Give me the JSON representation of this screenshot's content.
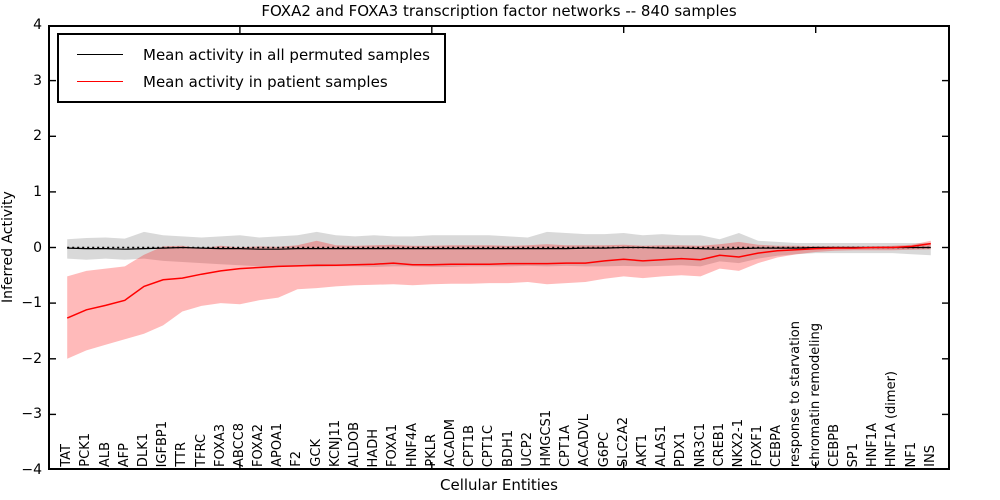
{
  "chart_data": {
    "type": "line",
    "title": "FOXA2 and FOXA3 transcription factor networks -- 840 samples",
    "xlabel": "Cellular Entities",
    "ylabel": "Inferred Activity",
    "ylim": [
      -4,
      4
    ],
    "yticks": [
      4,
      3,
      2,
      1,
      0,
      -1,
      -2,
      -3,
      -4
    ],
    "xlim": [
      0,
      47
    ],
    "x_axis_tick_positions": [
      10,
      20,
      30,
      40
    ],
    "grid": false,
    "legend_position": "upper left",
    "zero_reference_line": {
      "y": 0,
      "style": "dotted",
      "color": "#000000"
    },
    "categories": [
      "TAT",
      "PCK1",
      "ALB",
      "AFP",
      "DLK1",
      "IGFBP1",
      "TTR",
      "TFRC",
      "FOXA3",
      "ABCC8",
      "FOXA2",
      "APOA1",
      "F2",
      "GCK",
      "KCNJ11",
      "ALDOB",
      "HADH",
      "FOXA1",
      "HNF4A",
      "PKLR",
      "ACADM",
      "CPT1B",
      "CPT1C",
      "BDH1",
      "UCP2",
      "HMGCS1",
      "CPT1A",
      "ACADVL",
      "G6PC",
      "SLC2A2",
      "AKT1",
      "ALAS1",
      "PDX1",
      "NR3C1",
      "CREB1",
      "NKX2-1",
      "FOXF1",
      "CEBPA",
      "response to starvation",
      "chromatin remodeling",
      "CEBPB",
      "SP1",
      "HNF1A",
      "HNF1A (dimer)",
      "NF1",
      "INS"
    ],
    "series": [
      {
        "name": "Mean activity in all permuted samples",
        "color": "#000000",
        "line_width": 1.2,
        "band_color": "#000000",
        "band_opacity": 0.15,
        "values": [
          -0.01,
          -0.02,
          -0.02,
          -0.03,
          -0.02,
          -0.01,
          0.0,
          -0.01,
          -0.02,
          -0.02,
          -0.03,
          -0.03,
          -0.02,
          -0.02,
          -0.02,
          -0.02,
          -0.02,
          -0.02,
          -0.02,
          -0.02,
          -0.02,
          -0.02,
          -0.02,
          -0.02,
          -0.02,
          -0.02,
          -0.02,
          -0.01,
          -0.01,
          0.0,
          0.0,
          -0.01,
          -0.01,
          -0.02,
          -0.03,
          -0.02,
          -0.01,
          -0.01,
          -0.01,
          0.0,
          0.0,
          0.0,
          0.0,
          0.0,
          0.0,
          0.0
        ],
        "band_upper": [
          0.15,
          0.17,
          0.18,
          0.16,
          0.28,
          0.22,
          0.2,
          0.18,
          0.2,
          0.22,
          0.18,
          0.2,
          0.22,
          0.28,
          0.22,
          0.2,
          0.22,
          0.2,
          0.2,
          0.22,
          0.22,
          0.22,
          0.22,
          0.2,
          0.18,
          0.28,
          0.26,
          0.24,
          0.24,
          0.26,
          0.22,
          0.24,
          0.22,
          0.22,
          0.15,
          0.26,
          0.12,
          0.1,
          0.08,
          0.08,
          0.08,
          0.08,
          0.08,
          0.08,
          0.08,
          0.08
        ],
        "band_lower": [
          -0.2,
          -0.22,
          -0.2,
          -0.22,
          -0.2,
          -0.24,
          -0.26,
          -0.28,
          -0.3,
          -0.32,
          -0.34,
          -0.34,
          -0.33,
          -0.35,
          -0.34,
          -0.34,
          -0.35,
          -0.34,
          -0.34,
          -0.35,
          -0.35,
          -0.34,
          -0.34,
          -0.34,
          -0.33,
          -0.34,
          -0.33,
          -0.34,
          -0.34,
          -0.33,
          -0.34,
          -0.33,
          -0.32,
          -0.34,
          -0.25,
          -0.28,
          -0.2,
          -0.15,
          -0.12,
          -0.1,
          -0.1,
          -0.1,
          -0.1,
          -0.1,
          -0.12,
          -0.14
        ]
      },
      {
        "name": "Mean activity in patient samples",
        "color": "#ff0000",
        "line_width": 1.5,
        "band_color": "#ff0000",
        "band_opacity": 0.27,
        "values": [
          -1.27,
          -1.12,
          -1.04,
          -0.95,
          -0.7,
          -0.58,
          -0.55,
          -0.48,
          -0.42,
          -0.38,
          -0.36,
          -0.34,
          -0.33,
          -0.32,
          -0.32,
          -0.31,
          -0.3,
          -0.28,
          -0.31,
          -0.31,
          -0.3,
          -0.3,
          -0.3,
          -0.29,
          -0.29,
          -0.29,
          -0.28,
          -0.28,
          -0.24,
          -0.21,
          -0.24,
          -0.22,
          -0.2,
          -0.22,
          -0.14,
          -0.17,
          -0.1,
          -0.06,
          -0.04,
          -0.02,
          -0.01,
          -0.01,
          0.0,
          0.0,
          0.02,
          0.07
        ],
        "band_upper": [
          -0.52,
          -0.42,
          -0.38,
          -0.34,
          -0.13,
          0.02,
          0.03,
          -0.02,
          0.03,
          0.0,
          0.02,
          0.01,
          0.04,
          0.12,
          0.04,
          0.03,
          0.04,
          0.05,
          0.03,
          0.03,
          0.04,
          0.04,
          0.04,
          0.03,
          0.04,
          0.06,
          0.04,
          0.04,
          0.04,
          0.05,
          0.03,
          0.04,
          0.04,
          0.03,
          0.06,
          0.1,
          0.05,
          0.03,
          0.03,
          0.02,
          0.02,
          0.02,
          0.02,
          0.03,
          0.05,
          0.12
        ],
        "band_lower": [
          -2.0,
          -1.85,
          -1.75,
          -1.65,
          -1.55,
          -1.4,
          -1.15,
          -1.05,
          -1.0,
          -1.02,
          -0.95,
          -0.9,
          -0.75,
          -0.73,
          -0.7,
          -0.68,
          -0.67,
          -0.66,
          -0.68,
          -0.66,
          -0.65,
          -0.65,
          -0.64,
          -0.64,
          -0.62,
          -0.66,
          -0.64,
          -0.62,
          -0.56,
          -0.52,
          -0.55,
          -0.52,
          -0.5,
          -0.52,
          -0.38,
          -0.42,
          -0.28,
          -0.18,
          -0.12,
          -0.08,
          -0.06,
          -0.05,
          -0.05,
          -0.05,
          -0.04,
          -0.03
        ]
      }
    ]
  },
  "legend": {
    "entries": [
      {
        "label": "Mean activity in all permuted samples",
        "color": "#000000"
      },
      {
        "label": "Mean activity in patient samples",
        "color": "#ff0000"
      }
    ]
  }
}
